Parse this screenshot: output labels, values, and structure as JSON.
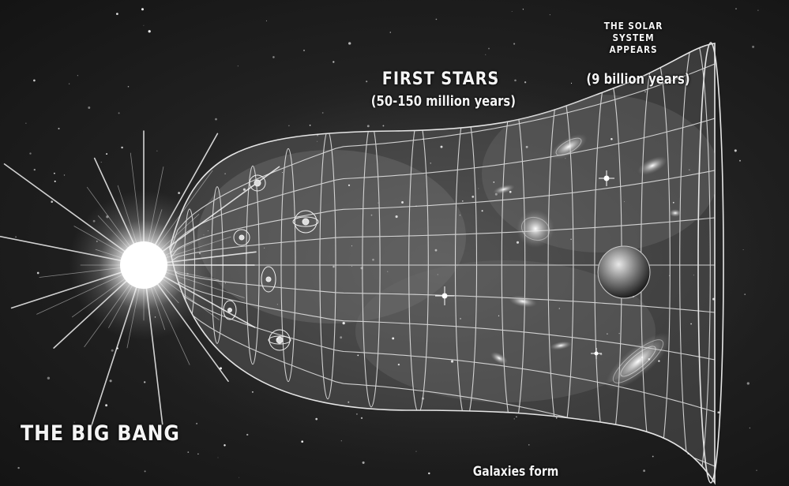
{
  "labels": {
    "first_stars": "FIRST STARS",
    "first_stars_time": "(50-150 million years)",
    "solar_system": "THE SOLAR SYSTEM APPEARS",
    "solar_system_time": "(9 billion years)",
    "big_bang": "THE BIG BANG",
    "galaxies_form": "Galaxies form"
  }
}
